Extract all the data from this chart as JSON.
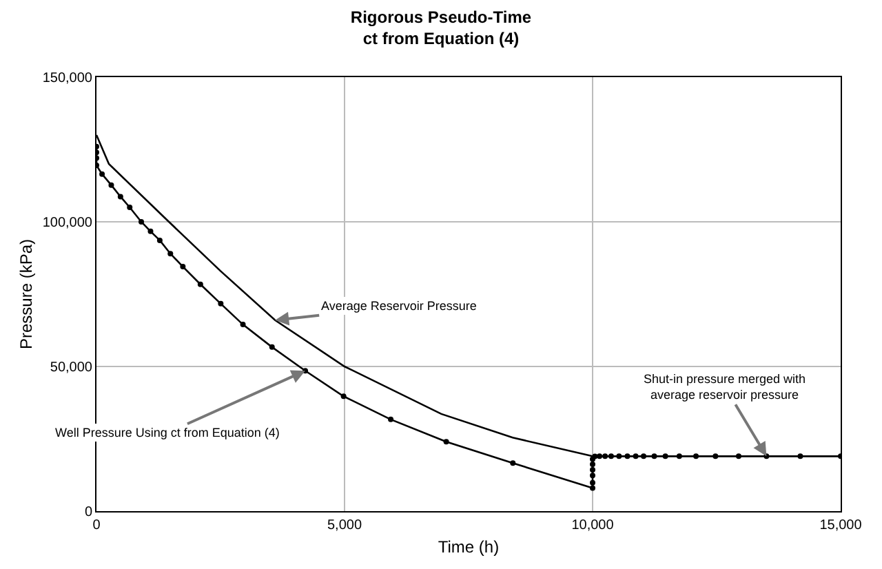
{
  "chart_data": {
    "type": "line",
    "title": "Rigorous Pseudo-Time\nct from Equation (4)",
    "xlabel": "Time (h)",
    "ylabel": "Pressure (kPa)",
    "xlim": [
      0,
      15000
    ],
    "xticks": [
      0,
      {
        "value": 5000,
        "label": "5,000"
      },
      {
        "value": 10000,
        "label": "10,000"
      },
      {
        "value": 15000,
        "label": "15,000"
      }
    ],
    "ylim": [
      0,
      150000
    ],
    "yticks": [
      0,
      {
        "value": 50000,
        "label": "50,000"
      },
      {
        "value": 100000,
        "label": "100,000"
      },
      {
        "value": 150000,
        "label": "150,000"
      }
    ],
    "grid": true,
    "legend": false,
    "series": [
      {
        "color": "#000000",
        "marker": "none",
        "x": [
          0,
          250,
          1460,
          2500,
          3600,
          5000,
          6950,
          8390,
          10000,
          15000
        ],
        "values": [
          130000,
          120000,
          100000,
          83000,
          66000,
          50000,
          33600,
          25400,
          19000,
          19000
        ]
      },
      {
        "color": "#000000",
        "marker": "circle",
        "x": [
          0,
          0,
          0,
          0,
          112,
          298,
          484,
          670,
          903,
          1090,
          1276,
          1490,
          1741,
          2095,
          2505,
          2952,
          3538,
          4209,
          4981,
          5931,
          7050,
          8393,
          10000,
          10000,
          10000,
          10000,
          10000,
          10000,
          10047,
          10140,
          10252,
          10374,
          10533,
          10701,
          10869,
          11028,
          11243,
          11467,
          11748,
          12084,
          12477,
          12944,
          13505,
          14187,
          15000
        ],
        "values": [
          126000,
          124000,
          122000,
          119500,
          116500,
          112700,
          108700,
          105000,
          100000,
          96700,
          93600,
          89000,
          84500,
          78400,
          71700,
          64500,
          56700,
          48500,
          39700,
          31700,
          24000,
          16600,
          8000,
          9800,
          12300,
          14300,
          16200,
          18000,
          18900,
          19000,
          19000,
          19000,
          19000,
          19000,
          19000,
          19000,
          19000,
          19000,
          19000,
          19000,
          19000,
          19000,
          19000,
          19000,
          19000
        ]
      }
    ],
    "annotations": [
      {
        "text": "Average Reservoir Pressure",
        "x": 3600,
        "y": 66000
      },
      {
        "text": "Well Pressure Using ct from Equation (4)",
        "x": 4209,
        "y": 48500
      },
      {
        "text": "Shut-in pressure merged with\naverage reservoir pressure",
        "x": 13505,
        "y": 19000
      }
    ]
  }
}
